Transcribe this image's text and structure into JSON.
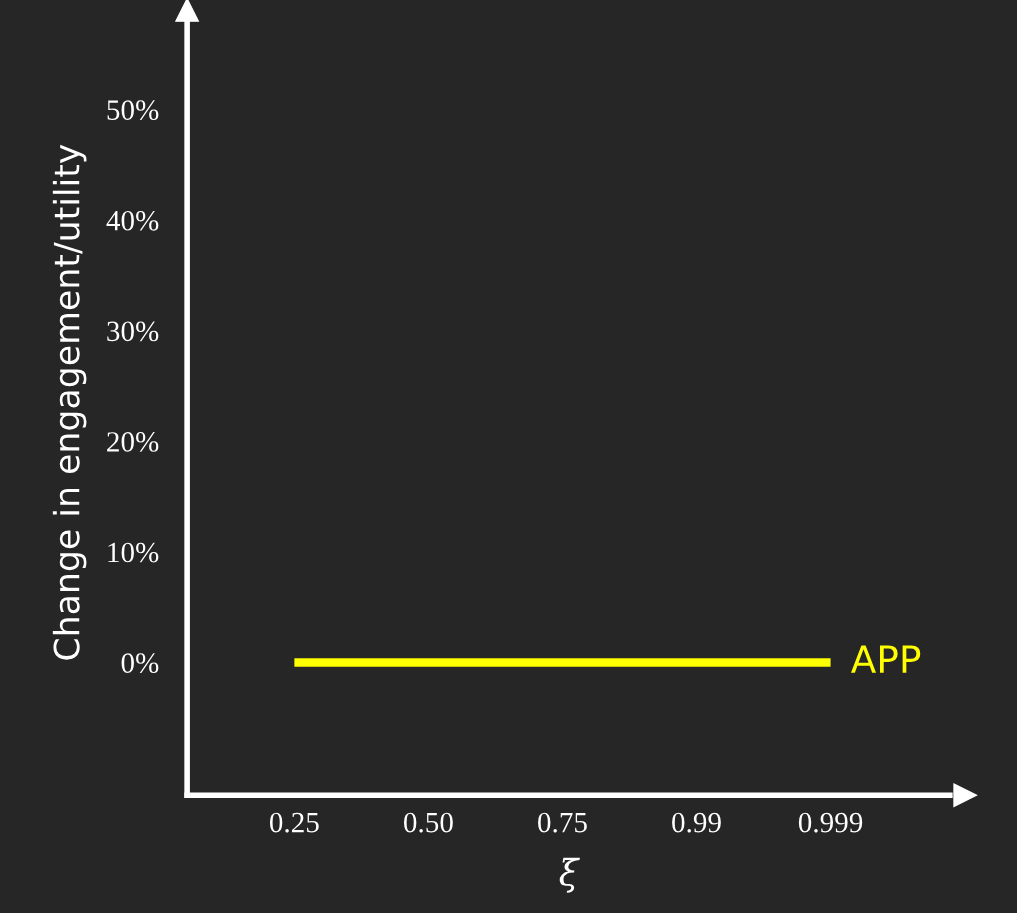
{
  "chart_data": {
    "type": "line",
    "categories": [
      "0.25",
      "0.50",
      "0.75",
      "0.99",
      "0.999"
    ],
    "series": [
      {
        "name": "APP",
        "color": "#ffff00",
        "values": [
          0,
          0,
          0,
          0,
          0
        ]
      }
    ],
    "xlabel": "ξ",
    "ylabel": "Change in engagement/utility",
    "ylim": [
      -12,
      59
    ],
    "yticks": [
      {
        "value": 0,
        "label": "0%"
      },
      {
        "value": 10,
        "label": "10%"
      },
      {
        "value": 20,
        "label": "20%"
      },
      {
        "value": 30,
        "label": "30%"
      },
      {
        "value": 40,
        "label": "40%"
      },
      {
        "value": 50,
        "label": "50%"
      }
    ],
    "grid": false,
    "legend": false,
    "marker": "none",
    "line_style": "solid"
  }
}
